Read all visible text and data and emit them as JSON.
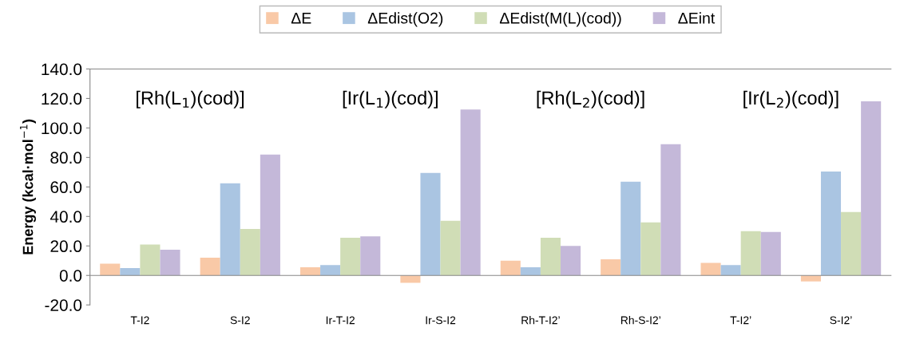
{
  "chart_data": {
    "type": "bar",
    "ylabel": "Energy (kcal·mol$^{−1}$)",
    "categories": [
      "T-I2",
      "S-I2",
      "Ir-T-I2",
      "Ir-S-I2",
      "Rh-T-I2’",
      "Rh-S-I2’",
      "T-I2’",
      "S-I2’"
    ],
    "series": [
      {
        "name": "ΔE",
        "color": "#f9c9a7",
        "values": [
          8,
          12,
          5.5,
          -5,
          10,
          11,
          8.5,
          -4
        ]
      },
      {
        "name": "ΔEdist(O2)",
        "color": "#aac5e2",
        "values": [
          5,
          62.5,
          7,
          69.5,
          5.5,
          63.5,
          7,
          70.5
        ]
      },
      {
        "name": "ΔEdist(M(L)(cod))",
        "color": "#d0ddb6",
        "values": [
          21,
          31.5,
          25.5,
          37,
          25.5,
          36,
          30,
          43
        ]
      },
      {
        "name": "ΔEint",
        "color": "#c4b8d9",
        "values": [
          17.5,
          82,
          26.5,
          112.5,
          20,
          89,
          29.5,
          118
        ]
      }
    ],
    "annotations": [
      "[Rh(L$_{1}$)(cod)]",
      "[Ir(L$_{1}$)(cod)]",
      "[Rh(L$_{2}$)(cod)]",
      "[Ir(L$_{2}$)(cod)]"
    ],
    "ylim": [
      -20,
      140
    ],
    "yticks": [
      {
        "value": -20,
        "label": "-20.0"
      },
      {
        "value": 0,
        "label": "0.0"
      },
      {
        "value": 20,
        "label": "20.0"
      },
      {
        "value": 40,
        "label": "40.0"
      },
      {
        "value": 60,
        "label": "60.0"
      },
      {
        "value": 80,
        "label": "80.0"
      },
      {
        "value": 100,
        "label": "100.0"
      },
      {
        "value": 120,
        "label": "120.0"
      },
      {
        "value": 140,
        "label": "140.0"
      }
    ],
    "legend": "top"
  }
}
